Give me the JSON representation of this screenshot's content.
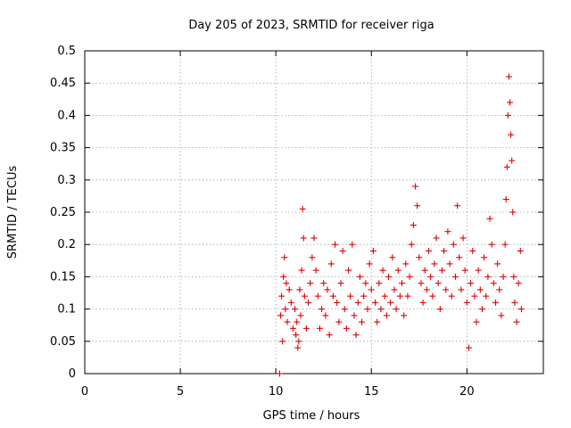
{
  "chart_data": {
    "type": "scatter",
    "title": "Day 205 of 2023, SRMTID for receiver riga",
    "xlabel": "GPS time / hours",
    "ylabel": "SRMTID / TECUs",
    "xlim": [
      0,
      24
    ],
    "ylim": [
      0,
      0.5
    ],
    "xticks": [
      0,
      5,
      10,
      15,
      20
    ],
    "xtick_labels": [
      "0",
      "5",
      "10",
      "15",
      "20"
    ],
    "yticks": [
      0,
      0.05,
      0.1,
      0.15,
      0.2,
      0.25,
      0.3,
      0.35,
      0.4,
      0.45,
      0.5
    ],
    "ytick_labels": [
      "0",
      "0.05",
      "0.1",
      "0.15",
      "0.2",
      "0.25",
      "0.3",
      "0.35",
      "0.4",
      "0.45",
      "0.5"
    ],
    "grid": true,
    "marker": "+",
    "marker_color": "#e00000",
    "series": [
      {
        "name": "SRMTID",
        "points": [
          [
            10.2,
            0.0
          ],
          [
            10.25,
            0.09
          ],
          [
            10.3,
            0.12
          ],
          [
            10.35,
            0.05
          ],
          [
            10.4,
            0.15
          ],
          [
            10.45,
            0.18
          ],
          [
            10.5,
            0.1
          ],
          [
            10.55,
            0.14
          ],
          [
            10.6,
            0.08
          ],
          [
            10.7,
            0.13
          ],
          [
            10.8,
            0.11
          ],
          [
            10.9,
            0.07
          ],
          [
            11.0,
            0.1
          ],
          [
            11.05,
            0.06
          ],
          [
            11.1,
            0.08
          ],
          [
            11.15,
            0.04
          ],
          [
            11.2,
            0.05
          ],
          [
            11.25,
            0.13
          ],
          [
            11.3,
            0.09
          ],
          [
            11.35,
            0.16
          ],
          [
            11.4,
            0.255
          ],
          [
            11.45,
            0.21
          ],
          [
            11.5,
            0.12
          ],
          [
            11.6,
            0.07
          ],
          [
            11.7,
            0.11
          ],
          [
            11.8,
            0.14
          ],
          [
            11.9,
            0.18
          ],
          [
            12.0,
            0.21
          ],
          [
            12.1,
            0.16
          ],
          [
            12.2,
            0.12
          ],
          [
            12.3,
            0.07
          ],
          [
            12.4,
            0.1
          ],
          [
            12.5,
            0.14
          ],
          [
            12.6,
            0.09
          ],
          [
            12.7,
            0.13
          ],
          [
            12.8,
            0.06
          ],
          [
            12.9,
            0.17
          ],
          [
            13.0,
            0.12
          ],
          [
            13.1,
            0.2
          ],
          [
            13.2,
            0.11
          ],
          [
            13.3,
            0.08
          ],
          [
            13.4,
            0.14
          ],
          [
            13.5,
            0.19
          ],
          [
            13.6,
            0.1
          ],
          [
            13.7,
            0.07
          ],
          [
            13.8,
            0.16
          ],
          [
            13.9,
            0.12
          ],
          [
            14.0,
            0.2
          ],
          [
            14.1,
            0.09
          ],
          [
            14.2,
            0.06
          ],
          [
            14.3,
            0.11
          ],
          [
            14.4,
            0.15
          ],
          [
            14.5,
            0.08
          ],
          [
            14.6,
            0.12
          ],
          [
            14.7,
            0.14
          ],
          [
            14.8,
            0.1
          ],
          [
            14.9,
            0.17
          ],
          [
            15.0,
            0.13
          ],
          [
            15.1,
            0.19
          ],
          [
            15.2,
            0.11
          ],
          [
            15.3,
            0.08
          ],
          [
            15.4,
            0.14
          ],
          [
            15.5,
            0.1
          ],
          [
            15.6,
            0.16
          ],
          [
            15.7,
            0.12
          ],
          [
            15.8,
            0.09
          ],
          [
            15.9,
            0.15
          ],
          [
            16.0,
            0.11
          ],
          [
            16.1,
            0.18
          ],
          [
            16.2,
            0.13
          ],
          [
            16.3,
            0.1
          ],
          [
            16.4,
            0.16
          ],
          [
            16.5,
            0.12
          ],
          [
            16.6,
            0.14
          ],
          [
            16.7,
            0.09
          ],
          [
            16.8,
            0.17
          ],
          [
            16.9,
            0.12
          ],
          [
            17.0,
            0.15
          ],
          [
            17.1,
            0.2
          ],
          [
            17.2,
            0.23
          ],
          [
            17.3,
            0.29
          ],
          [
            17.4,
            0.26
          ],
          [
            17.5,
            0.18
          ],
          [
            17.6,
            0.14
          ],
          [
            17.7,
            0.11
          ],
          [
            17.8,
            0.16
          ],
          [
            17.9,
            0.13
          ],
          [
            18.0,
            0.19
          ],
          [
            18.1,
            0.15
          ],
          [
            18.2,
            0.12
          ],
          [
            18.3,
            0.17
          ],
          [
            18.4,
            0.21
          ],
          [
            18.5,
            0.14
          ],
          [
            18.6,
            0.1
          ],
          [
            18.7,
            0.16
          ],
          [
            18.8,
            0.19
          ],
          [
            18.9,
            0.13
          ],
          [
            19.0,
            0.22
          ],
          [
            19.1,
            0.17
          ],
          [
            19.2,
            0.12
          ],
          [
            19.3,
            0.2
          ],
          [
            19.4,
            0.15
          ],
          [
            19.5,
            0.26
          ],
          [
            19.6,
            0.18
          ],
          [
            19.7,
            0.13
          ],
          [
            19.8,
            0.21
          ],
          [
            19.9,
            0.16
          ],
          [
            20.0,
            0.11
          ],
          [
            20.1,
            0.04
          ],
          [
            20.2,
            0.14
          ],
          [
            20.3,
            0.19
          ],
          [
            20.4,
            0.12
          ],
          [
            20.5,
            0.08
          ],
          [
            20.6,
            0.16
          ],
          [
            20.7,
            0.13
          ],
          [
            20.8,
            0.1
          ],
          [
            20.9,
            0.18
          ],
          [
            21.0,
            0.12
          ],
          [
            21.1,
            0.15
          ],
          [
            21.2,
            0.24
          ],
          [
            21.3,
            0.2
          ],
          [
            21.4,
            0.14
          ],
          [
            21.5,
            0.11
          ],
          [
            21.6,
            0.17
          ],
          [
            21.7,
            0.13
          ],
          [
            21.8,
            0.09
          ],
          [
            21.9,
            0.15
          ],
          [
            22.0,
            0.2
          ],
          [
            22.05,
            0.27
          ],
          [
            22.1,
            0.32
          ],
          [
            22.15,
            0.4
          ],
          [
            22.2,
            0.46
          ],
          [
            22.25,
            0.42
          ],
          [
            22.3,
            0.37
          ],
          [
            22.35,
            0.33
          ],
          [
            22.4,
            0.25
          ],
          [
            22.45,
            0.15
          ],
          [
            22.5,
            0.11
          ],
          [
            22.6,
            0.08
          ],
          [
            22.7,
            0.14
          ],
          [
            22.8,
            0.19
          ],
          [
            22.85,
            0.1
          ]
        ]
      }
    ]
  }
}
